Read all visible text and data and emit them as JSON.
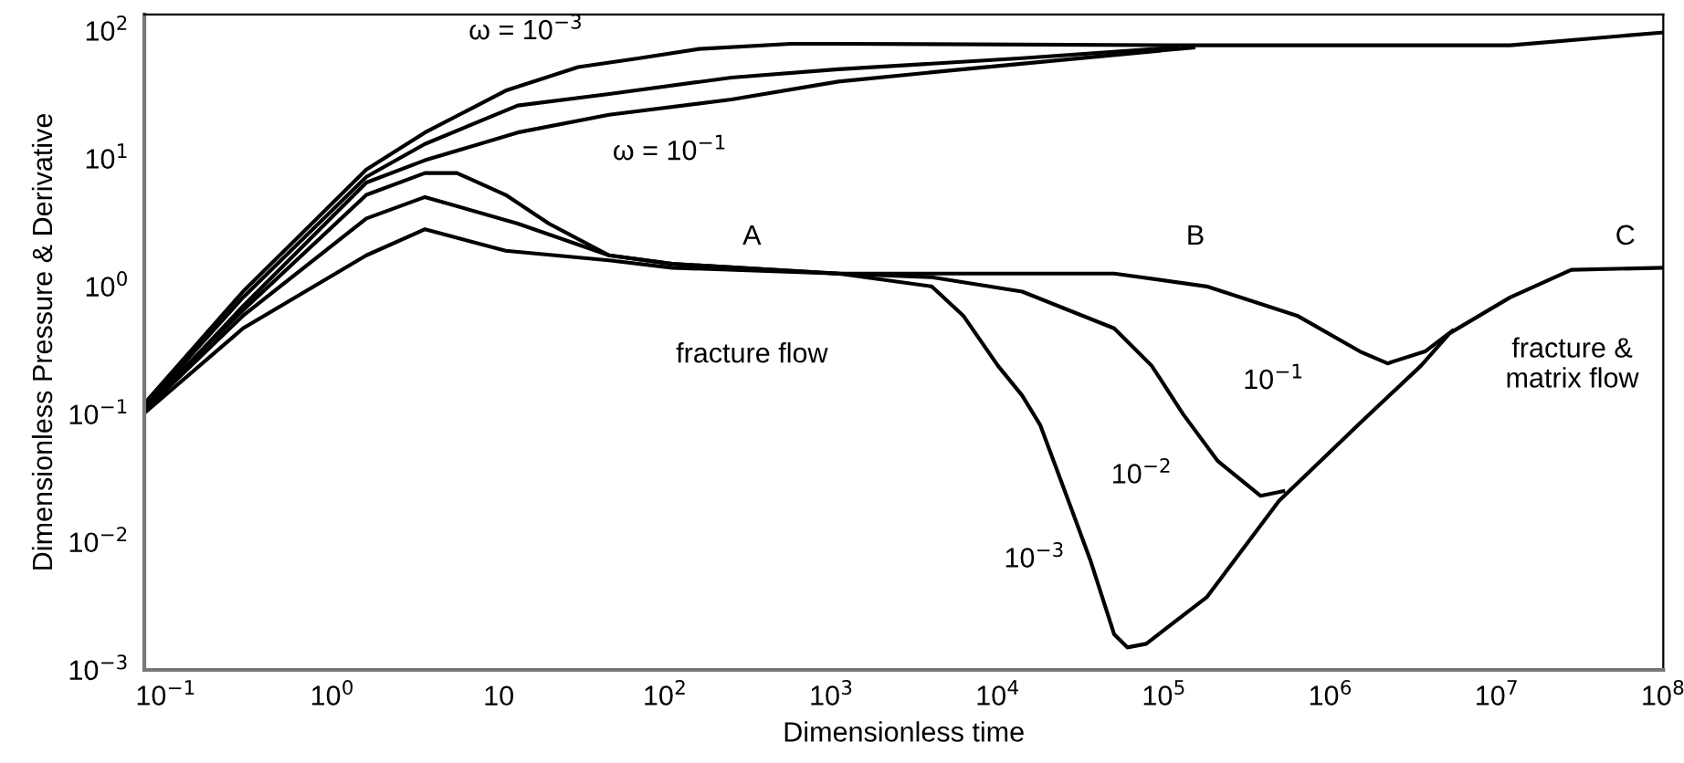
{
  "chart_data": {
    "type": "line",
    "xlabel": "Dimensionless time",
    "ylabel": "Dimensionless Pressure & Derivative",
    "log": "xy",
    "grid": false,
    "legend": false,
    "marker": "none",
    "line_style": "solid",
    "xlim": [
      0.074,
      100000000
    ],
    "ylim": [
      0.001,
      134
    ],
    "xticks": [
      {
        "value": 0.1,
        "label": "10$^{−1}$"
      },
      {
        "value": 1,
        "label": "10$^{0}$"
      },
      10,
      {
        "value": 100,
        "label": "10$^{2}$"
      },
      {
        "value": 1000,
        "label": "10$^{3}$"
      },
      {
        "value": 10000,
        "label": "10$^{4}$"
      },
      {
        "value": 100000,
        "label": "10$^{5}$"
      },
      {
        "value": 1000000,
        "label": "10$^{6}$"
      },
      {
        "value": 10000000,
        "label": "10$^{7}$"
      },
      {
        "value": 100000000,
        "label": "10$^{8}$"
      }
    ],
    "yticks": [
      {
        "value": 0.001,
        "label": "10$^{−3}$"
      },
      {
        "value": 0.01,
        "label": "10$^{−2}$"
      },
      {
        "value": 0.1,
        "label": "10$^{−1}$"
      },
      {
        "value": 1,
        "label": "10$^{0}$"
      },
      {
        "value": 10,
        "label": "10$^{1}$"
      },
      {
        "value": 100,
        "label": "10$^{2}$"
      }
    ],
    "series": [
      {
        "name": "ω = 10$^{−3}$",
        "color": "#000000",
        "x": [
          0.076,
          0.29,
          1.6,
          3.6,
          11,
          30,
          70,
          160,
          570,
          1100,
          120000,
          12000000,
          100000000
        ],
        "values": [
          0.126,
          0.91,
          8.2,
          16,
          34,
          52,
          61,
          72,
          79,
          79,
          77,
          77,
          97
        ]
      },
      {
        "color": "#000000",
        "x": [
          0.076,
          0.29,
          1.6,
          3.6,
          13,
          46,
          250,
          1100,
          14000,
          120000
        ],
        "values": [
          0.118,
          0.82,
          7.2,
          13,
          26,
          32,
          43,
          50,
          61,
          74
        ]
      },
      {
        "name": "ω = 10$^{−1}$",
        "color": "#000000",
        "x": [
          0.076,
          0.29,
          1.6,
          3.6,
          13,
          46,
          250,
          1100,
          6200,
          150000
        ],
        "values": [
          0.11,
          0.7,
          6.5,
          9.7,
          16,
          22,
          29,
          40,
          50,
          74
        ]
      },
      {
        "name": "10$^{−3}$",
        "color": "#000000",
        "x": [
          0.076,
          0.29,
          1.6,
          3.6,
          5.6,
          11,
          20,
          46,
          110,
          1100,
          4000,
          6200,
          10000,
          14000,
          18000,
          28000,
          36000,
          50000,
          60000,
          78000,
          180000,
          490000,
          1500000,
          3500000,
          5200000,
          12000000,
          28000000,
          100000000
        ],
        "values": [
          0.118,
          0.65,
          5.2,
          7.7,
          7.7,
          5.2,
          3.1,
          1.75,
          1.5,
          1.26,
          1.0,
          0.59,
          0.24,
          0.14,
          0.082,
          0.0175,
          0.0072,
          0.0019,
          0.0015,
          0.0016,
          0.0037,
          0.021,
          0.085,
          0.24,
          0.43,
          0.82,
          1.35,
          1.4
        ]
      },
      {
        "name": "10$^{−2}$",
        "color": "#000000",
        "x": [
          0.076,
          0.29,
          1.6,
          3.6,
          13,
          46,
          110,
          1100,
          4000,
          14000,
          50000,
          84000,
          130000,
          210000,
          380000,
          520000
        ],
        "values": [
          0.11,
          0.59,
          3.4,
          5.0,
          3.1,
          1.75,
          1.5,
          1.26,
          1.18,
          0.91,
          0.47,
          0.24,
          0.1,
          0.043,
          0.023,
          0.025
        ]
      },
      {
        "name": "10$^{−1}$",
        "color": "#000000",
        "x": [
          0.076,
          0.29,
          1.6,
          3.6,
          11,
          46,
          110,
          1100,
          50000,
          180000,
          630000,
          1500000,
          2200000,
          3700000,
          5400000
        ],
        "values": [
          0.105,
          0.47,
          1.75,
          2.8,
          1.9,
          1.6,
          1.4,
          1.26,
          1.26,
          1.0,
          0.59,
          0.31,
          0.25,
          0.31,
          0.45
        ]
      }
    ],
    "annotations": [
      "A",
      "B",
      "C",
      "fracture flow",
      "fracture &\nmatrix flow"
    ]
  }
}
